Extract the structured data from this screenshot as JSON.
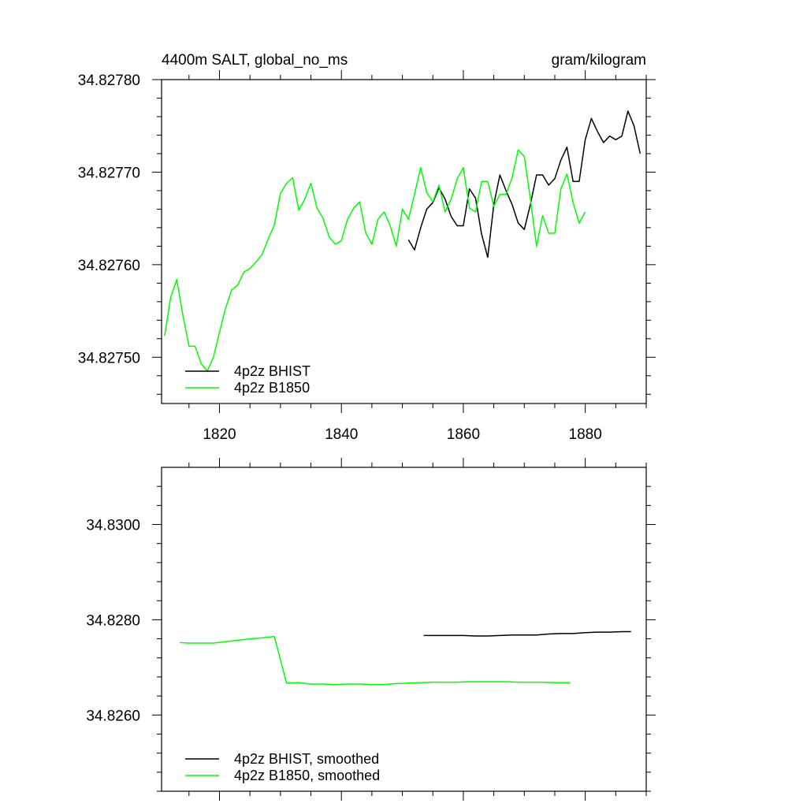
{
  "chart_data": [
    {
      "type": "line",
      "title": "4400m SALT, global_no_ms",
      "units": "gram/kilogram",
      "xlabel": "",
      "ylabel": "",
      "xlim": [
        1810.5,
        1890
      ],
      "ylim": [
        34.82745,
        34.8278
      ],
      "x_ticks": [
        1820,
        1840,
        1860,
        1880
      ],
      "x_tick_labels": [
        "1820",
        "1840",
        "1860",
        "1880"
      ],
      "y_ticks": [
        34.8275,
        34.8276,
        34.8277,
        34.8278
      ],
      "y_tick_labels": [
        "34.82750",
        "34.82760",
        "34.82770",
        "34.82780"
      ],
      "grid": false,
      "legend": "bottom-left",
      "series": [
        {
          "name": "4p2z BHIST",
          "color": "#000000",
          "x": [
            1851,
            1852,
            1853,
            1854,
            1855,
            1856,
            1857,
            1858,
            1859,
            1860,
            1861,
            1862,
            1863,
            1864,
            1865,
            1866,
            1867,
            1868,
            1869,
            1870,
            1871,
            1872,
            1873,
            1874,
            1875,
            1876,
            1877,
            1878,
            1879,
            1880,
            1881,
            1882,
            1883,
            1884,
            1885,
            1886,
            1887,
            1888,
            1889
          ],
          "y": [
            34.827627,
            34.827616,
            34.82764,
            34.82766,
            34.827667,
            34.827683,
            34.827671,
            34.827652,
            34.827642,
            34.827642,
            34.827682,
            34.827672,
            34.827633,
            34.827608,
            34.827665,
            34.827697,
            34.82768,
            34.827665,
            34.827645,
            34.827638,
            34.827665,
            34.827697,
            34.827697,
            34.827686,
            34.827693,
            34.827713,
            34.827727,
            34.82769,
            34.82769,
            34.827735,
            34.827758,
            34.827744,
            34.827732,
            34.827739,
            34.827735,
            34.827739,
            34.827766,
            34.82775,
            34.82772
          ]
        },
        {
          "name": "4p2z B1850",
          "color": "#00ff00",
          "x": [
            1811,
            1812,
            1813,
            1814,
            1815,
            1816,
            1817,
            1818,
            1819,
            1820,
            1821,
            1822,
            1823,
            1824,
            1825,
            1826,
            1827,
            1828,
            1829,
            1830,
            1831,
            1832,
            1833,
            1834,
            1835,
            1836,
            1837,
            1838,
            1839,
            1840,
            1841,
            1842,
            1843,
            1844,
            1845,
            1846,
            1847,
            1848,
            1849,
            1850,
            1851,
            1852,
            1853,
            1854,
            1855,
            1856,
            1857,
            1858,
            1859,
            1860,
            1861,
            1862,
            1863,
            1864,
            1865,
            1866,
            1867,
            1868,
            1869,
            1870,
            1871,
            1872,
            1873,
            1874,
            1875,
            1876,
            1877,
            1878,
            1879,
            1880
          ],
          "y": [
            34.827523,
            34.827565,
            34.827584,
            34.827545,
            34.827512,
            34.827512,
            34.827493,
            34.827485,
            34.8275,
            34.827527,
            34.827553,
            34.827573,
            34.827578,
            34.827592,
            34.827596,
            34.827603,
            34.827611,
            34.827628,
            34.827643,
            34.827677,
            34.827688,
            34.827694,
            34.827659,
            34.827671,
            34.827688,
            34.827661,
            34.82765,
            34.82763,
            34.827622,
            34.827626,
            34.827649,
            34.827661,
            34.827668,
            34.827634,
            34.827622,
            34.827649,
            34.827657,
            34.827642,
            34.82762,
            34.82766,
            34.827649,
            34.827676,
            34.827705,
            34.827678,
            34.827668,
            34.827686,
            34.827657,
            34.827671,
            34.827693,
            34.827705,
            34.827661,
            34.827657,
            34.82769,
            34.82769,
            34.827663,
            34.827676,
            34.827676,
            34.827694,
            34.827724,
            34.827717,
            34.827671,
            34.82762,
            34.827653,
            34.827634,
            34.827634,
            34.827682,
            34.827698,
            34.827667,
            34.827645,
            34.827657
          ]
        }
      ]
    },
    {
      "type": "line",
      "title": "",
      "xlabel": "",
      "ylabel": "",
      "xlim": [
        1810.5,
        1890
      ],
      "ylim": [
        34.8244,
        34.8312
      ],
      "x_ticks": [
        1820,
        1840,
        1860,
        1880
      ],
      "y_ticks": [
        34.826,
        34.828,
        34.83
      ],
      "y_tick_labels": [
        "34.8260",
        "34.8280",
        "34.8300"
      ],
      "grid": false,
      "legend": "bottom-left",
      "series": [
        {
          "name": "4p2z BHIST, smoothed",
          "color": "#000000",
          "x": [
            1853.5,
            1856,
            1858,
            1860,
            1862,
            1864,
            1866,
            1868,
            1870,
            1872,
            1874,
            1876,
            1878,
            1880,
            1882,
            1884,
            1886,
            1887.5
          ],
          "y": [
            34.82767,
            34.82767,
            34.82767,
            34.82767,
            34.82766,
            34.82766,
            34.82767,
            34.82768,
            34.82768,
            34.82768,
            34.8277,
            34.82771,
            34.82771,
            34.82773,
            34.82774,
            34.82774,
            34.82775,
            34.82775
          ]
        },
        {
          "name": "4p2z B1850, smoothed",
          "color": "#00ff00",
          "x": [
            1813.5,
            1815,
            1817,
            1819,
            1821,
            1823,
            1825,
            1827,
            1829,
            1831,
            1833,
            1835,
            1837,
            1839,
            1841,
            1843,
            1845,
            1847,
            1849,
            1851,
            1853,
            1855,
            1857,
            1859,
            1861,
            1863,
            1865,
            1867,
            1869,
            1871,
            1873,
            1875,
            1877.5
          ],
          "y": [
            34.82752,
            34.82751,
            34.82751,
            34.82751,
            34.82754,
            34.82757,
            34.8276,
            34.82762,
            34.82765,
            34.82667,
            34.82668,
            34.82665,
            34.82665,
            34.82664,
            34.82665,
            34.82665,
            34.82664,
            34.82664,
            34.82666,
            34.82667,
            34.82668,
            34.82669,
            34.82669,
            34.82669,
            34.8267,
            34.8267,
            34.8267,
            34.8267,
            34.82669,
            34.82669,
            34.82669,
            34.82668,
            34.82668
          ]
        }
      ]
    }
  ]
}
